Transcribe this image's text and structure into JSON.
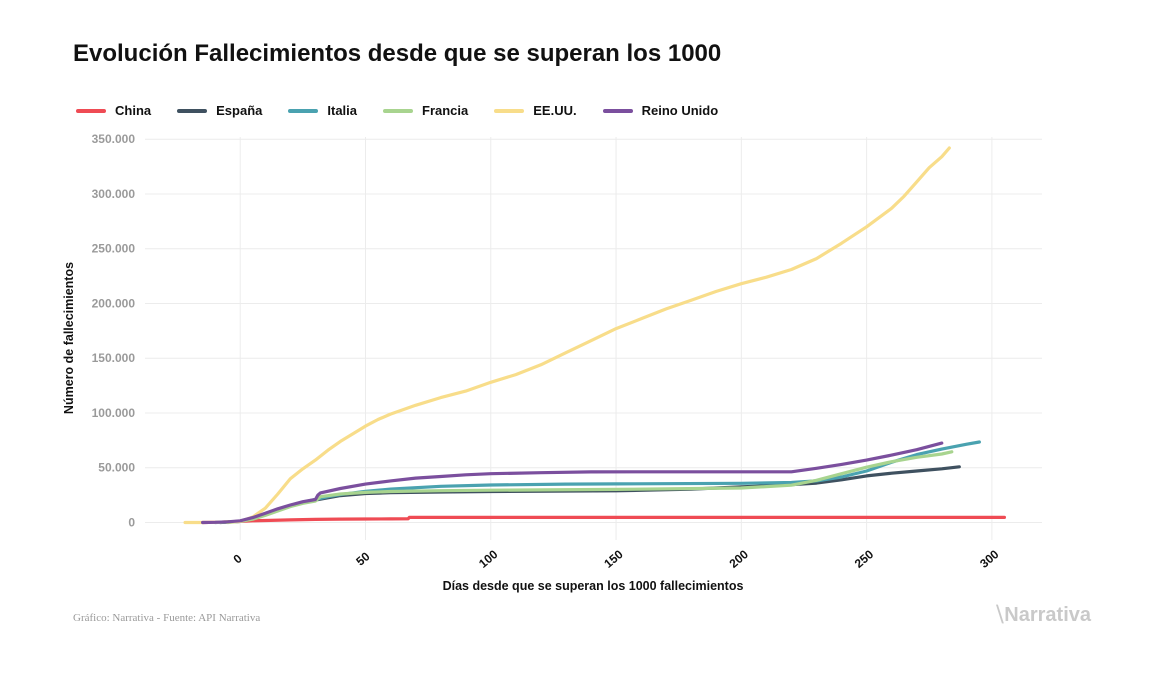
{
  "chart_data": {
    "type": "line",
    "title": "Evolución Fallecimientos desde que se superan los 1000",
    "xlabel": "Días desde que se superan los 1000 fallecimientos",
    "ylabel": "Número de fallecimientos",
    "xlim": [
      -38,
      320
    ],
    "ylim": [
      -16000,
      352000
    ],
    "xticks": [
      0,
      50,
      100,
      150,
      200,
      250,
      300
    ],
    "xtick_labels": [
      "0",
      "50",
      "100",
      "150",
      "200",
      "250",
      "300"
    ],
    "yticks": [
      0,
      50000,
      100000,
      150000,
      200000,
      250000,
      300000,
      350000
    ],
    "ytick_labels": [
      "0",
      "50.000",
      "100.000",
      "150.000",
      "200.000",
      "250.000",
      "300.000",
      "350.000"
    ],
    "grid": true,
    "legend_position": "top-left",
    "series": [
      {
        "name": "China",
        "color": "#ef4b54",
        "x": [
          -15,
          -10,
          -5,
          0,
          5,
          10,
          20,
          30,
          40,
          50,
          60,
          67,
          67.5,
          100,
          150,
          200,
          250,
          300,
          305
        ],
        "y": [
          0,
          200,
          500,
          1000,
          1500,
          1800,
          2400,
          2800,
          3100,
          3200,
          3300,
          3330,
          4630,
          4634,
          4634,
          4634,
          4634,
          4634,
          4634
        ]
      },
      {
        "name": "España",
        "color": "#3f5160",
        "x": [
          -8,
          0,
          5,
          10,
          15,
          20,
          25,
          30,
          35,
          40,
          50,
          60,
          80,
          100,
          150,
          180,
          200,
          220,
          230,
          240,
          250,
          260,
          270,
          280,
          287
        ],
        "y": [
          0,
          1000,
          3500,
          7500,
          12000,
          15500,
          18500,
          20500,
          22500,
          24500,
          26500,
          27200,
          27800,
          28300,
          28900,
          30500,
          32500,
          34500,
          36000,
          39000,
          42500,
          45000,
          47000,
          49000,
          50800
        ]
      },
      {
        "name": "Italia",
        "color": "#4aa2b0",
        "x": [
          -10,
          0,
          5,
          10,
          15,
          20,
          25,
          30,
          35,
          40,
          50,
          60,
          80,
          100,
          130,
          150,
          200,
          220,
          230,
          240,
          250,
          260,
          270,
          280,
          290,
          295
        ],
        "y": [
          0,
          1000,
          3500,
          8000,
          12000,
          15500,
          18500,
          21000,
          23500,
          25500,
          28500,
          30500,
          33000,
          34200,
          35000,
          35200,
          35800,
          36500,
          38000,
          41500,
          47000,
          55000,
          62000,
          67000,
          71500,
          73500
        ]
      },
      {
        "name": "Francia",
        "color": "#a8d48f",
        "x": [
          -5,
          0,
          5,
          10,
          15,
          20,
          25,
          30,
          32,
          40,
          50,
          60,
          80,
          100,
          150,
          200,
          220,
          230,
          240,
          250,
          260,
          270,
          280,
          284
        ],
        "y": [
          0,
          1000,
          3000,
          6500,
          10500,
          14500,
          17500,
          19500,
          23500,
          26000,
          27500,
          28300,
          29000,
          29500,
          30200,
          31500,
          34000,
          38500,
          44500,
          50500,
          55500,
          59500,
          62500,
          64500
        ]
      },
      {
        "name": "EE.UU.",
        "color": "#f8dd8a",
        "x": [
          -22,
          -15,
          -10,
          -5,
          0,
          5,
          10,
          15,
          20,
          25,
          30,
          35,
          40,
          45,
          50,
          55,
          60,
          70,
          80,
          90,
          100,
          110,
          120,
          130,
          140,
          150,
          160,
          170,
          180,
          190,
          200,
          210,
          220,
          230,
          240,
          250,
          260,
          265,
          270,
          275,
          280,
          283
        ],
        "y": [
          0,
          0,
          200,
          500,
          1000,
          5000,
          13000,
          26000,
          40000,
          49000,
          57000,
          66000,
          74000,
          81000,
          88000,
          94000,
          99000,
          107000,
          114000,
          120000,
          128000,
          135000,
          144000,
          155000,
          166000,
          177000,
          186000,
          195000,
          203000,
          211000,
          218000,
          224000,
          231000,
          241000,
          255000,
          270000,
          287000,
          298000,
          311000,
          324000,
          334000,
          342000
        ]
      },
      {
        "name": "Reino Unido",
        "color": "#7b4f9e",
        "x": [
          -15,
          -10,
          -5,
          0,
          5,
          10,
          15,
          20,
          25,
          30,
          31,
          32,
          40,
          50,
          60,
          70,
          80,
          90,
          100,
          120,
          140,
          160,
          180,
          200,
          215,
          220,
          230,
          240,
          250,
          260,
          270,
          280
        ],
        "y": [
          0,
          200,
          600,
          1500,
          4500,
          8500,
          12500,
          16000,
          19000,
          21000,
          25000,
          27000,
          31000,
          35000,
          38000,
          40500,
          42000,
          43500,
          44500,
          45500,
          46200,
          46300,
          46300,
          46300,
          46300,
          46300,
          49500,
          53000,
          57000,
          61500,
          66500,
          72500
        ]
      }
    ]
  },
  "legend_title_prefix": "",
  "footer": {
    "source": "Gráfico: Narrativa - Fuente: API Narrativa",
    "logo_text": "Narrativa",
    "logo_icon": "narrativa-n-icon"
  }
}
